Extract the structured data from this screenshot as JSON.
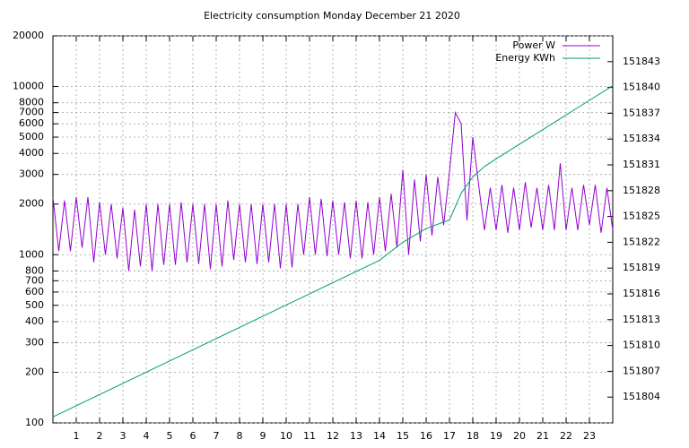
{
  "chart_data": {
    "type": "line",
    "title": "Electricity consumption Monday December 21 2020",
    "xlim": [
      0,
      24
    ],
    "xticks": [
      1,
      2,
      3,
      4,
      5,
      6,
      7,
      8,
      9,
      10,
      11,
      12,
      13,
      14,
      15,
      16,
      17,
      18,
      19,
      20,
      21,
      22,
      23
    ],
    "ylim": [
      100,
      20000
    ],
    "ylog": true,
    "yticks": [
      100,
      200,
      300,
      400,
      500,
      600,
      700,
      800,
      1000,
      2000,
      3000,
      4000,
      5000,
      6000,
      7000,
      8000,
      10000,
      20000
    ],
    "y2lim": [
      151801,
      151846
    ],
    "y2ticks": [
      151804,
      151807,
      151810,
      151813,
      151816,
      151819,
      151822,
      151825,
      151828,
      151831,
      151834,
      151837,
      151840,
      151843
    ],
    "grid": true,
    "legend": "top-right",
    "series": [
      {
        "name": "Power W",
        "color": "#9400d3",
        "x": [
          0,
          0.25,
          0.5,
          0.75,
          1,
          1.25,
          1.5,
          1.75,
          2,
          2.25,
          2.5,
          2.75,
          3,
          3.25,
          3.5,
          3.75,
          4,
          4.25,
          4.5,
          4.75,
          5,
          5.25,
          5.5,
          5.75,
          6,
          6.25,
          6.5,
          6.75,
          7,
          7.25,
          7.5,
          7.75,
          8,
          8.25,
          8.5,
          8.75,
          9,
          9.25,
          9.5,
          9.75,
          10,
          10.25,
          10.5,
          10.75,
          11,
          11.25,
          11.5,
          11.75,
          12,
          12.25,
          12.5,
          12.75,
          13,
          13.25,
          13.5,
          13.75,
          14,
          14.25,
          14.5,
          14.75,
          15,
          15.25,
          15.5,
          15.75,
          16,
          16.25,
          16.5,
          16.75,
          17,
          17.25,
          17.5,
          17.75,
          18,
          18.25,
          18.5,
          18.75,
          19,
          19.25,
          19.5,
          19.75,
          20,
          20.25,
          20.5,
          20.75,
          21,
          21.25,
          21.5,
          21.75,
          22,
          22.25,
          22.5,
          22.75,
          23,
          23.25,
          23.5,
          23.75,
          24
        ],
        "values": [
          2200,
          1050,
          2100,
          1050,
          2200,
          1100,
          2200,
          900,
          2050,
          1000,
          2000,
          950,
          1900,
          800,
          1850,
          850,
          2000,
          800,
          2000,
          870,
          2000,
          870,
          2050,
          900,
          2000,
          880,
          2000,
          820,
          2000,
          850,
          2100,
          930,
          2000,
          900,
          2000,
          880,
          2000,
          900,
          2000,
          830,
          2000,
          840,
          2000,
          1000,
          2200,
          1000,
          2150,
          980,
          2100,
          1000,
          2050,
          950,
          2100,
          950,
          2050,
          1000,
          2200,
          1050,
          2300,
          1100,
          3200,
          1000,
          2800,
          1200,
          3000,
          1300,
          2900,
          1500,
          3100,
          7000,
          6000,
          1600,
          5000,
          2600,
          1400,
          2500,
          1400,
          2600,
          1350,
          2500,
          1400,
          2700,
          1450,
          2500,
          1400,
          2600,
          1400,
          3500,
          1400,
          2500,
          1400,
          2600,
          1500,
          2600,
          1350,
          2500,
          1400
        ]
      },
      {
        "name": "Energy KWh",
        "color": "#009e73",
        "axis": "y2",
        "x": [
          0,
          10,
          14,
          15,
          16,
          17,
          17.5,
          18,
          18.5,
          19,
          20,
          21,
          22,
          23,
          24
        ],
        "values": [
          151801.7,
          151814.7,
          151819.9,
          151822,
          151823.6,
          151824.6,
          151827.7,
          151829.6,
          151830.8,
          151831.7,
          151833.4,
          151835.1,
          151836.8,
          151838.5,
          151840.2
        ]
      }
    ]
  }
}
